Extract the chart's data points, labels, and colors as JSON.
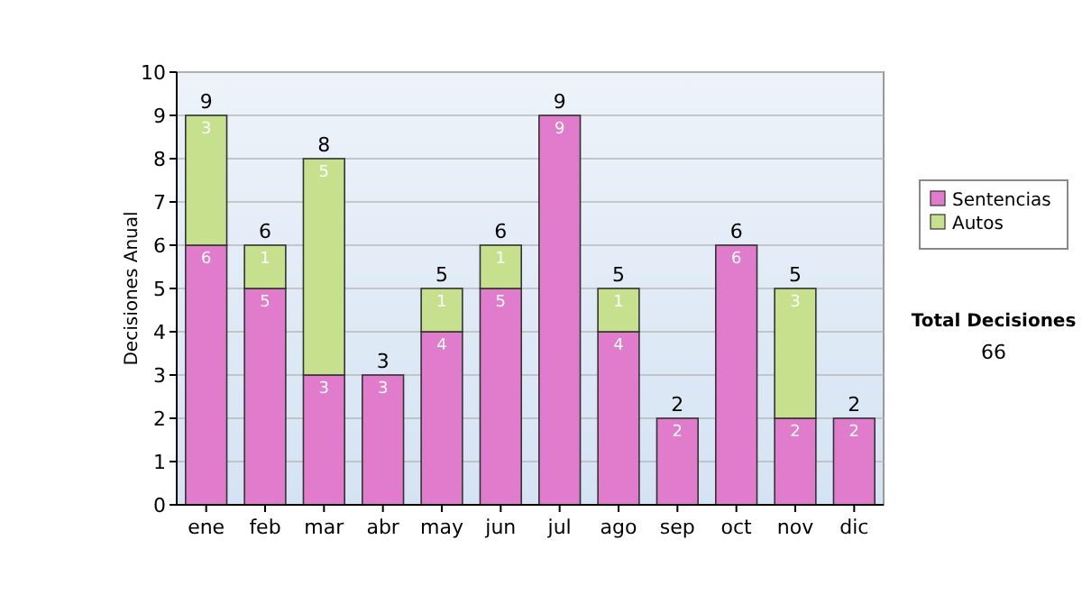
{
  "chart_data": {
    "type": "bar",
    "stacked": true,
    "ylabel": "Decisiones Anual",
    "categories": [
      "ene",
      "feb",
      "mar",
      "abr",
      "may",
      "jun",
      "jul",
      "ago",
      "sep",
      "oct",
      "nov",
      "dic"
    ],
    "series": [
      {
        "name": "Sentencias",
        "color": "#e07ccb",
        "values": [
          6,
          5,
          3,
          3,
          4,
          5,
          9,
          4,
          2,
          6,
          2,
          2
        ]
      },
      {
        "name": "Autos",
        "color": "#c6e08e",
        "values": [
          3,
          1,
          5,
          null,
          1,
          1,
          null,
          1,
          null,
          null,
          3,
          null
        ]
      }
    ],
    "totals": [
      "9",
      "6",
      "8",
      "3",
      "5",
      "6",
      "9",
      "5",
      "2",
      "6",
      "5",
      "2"
    ],
    "data_labels": true,
    "ylim": [
      0,
      10
    ],
    "yticks": [
      0,
      1,
      2,
      3,
      4,
      5,
      6,
      7,
      8,
      9,
      10
    ],
    "grid": "y",
    "legend": "right",
    "annotations": [
      "Total Decisiones",
      "66"
    ]
  }
}
